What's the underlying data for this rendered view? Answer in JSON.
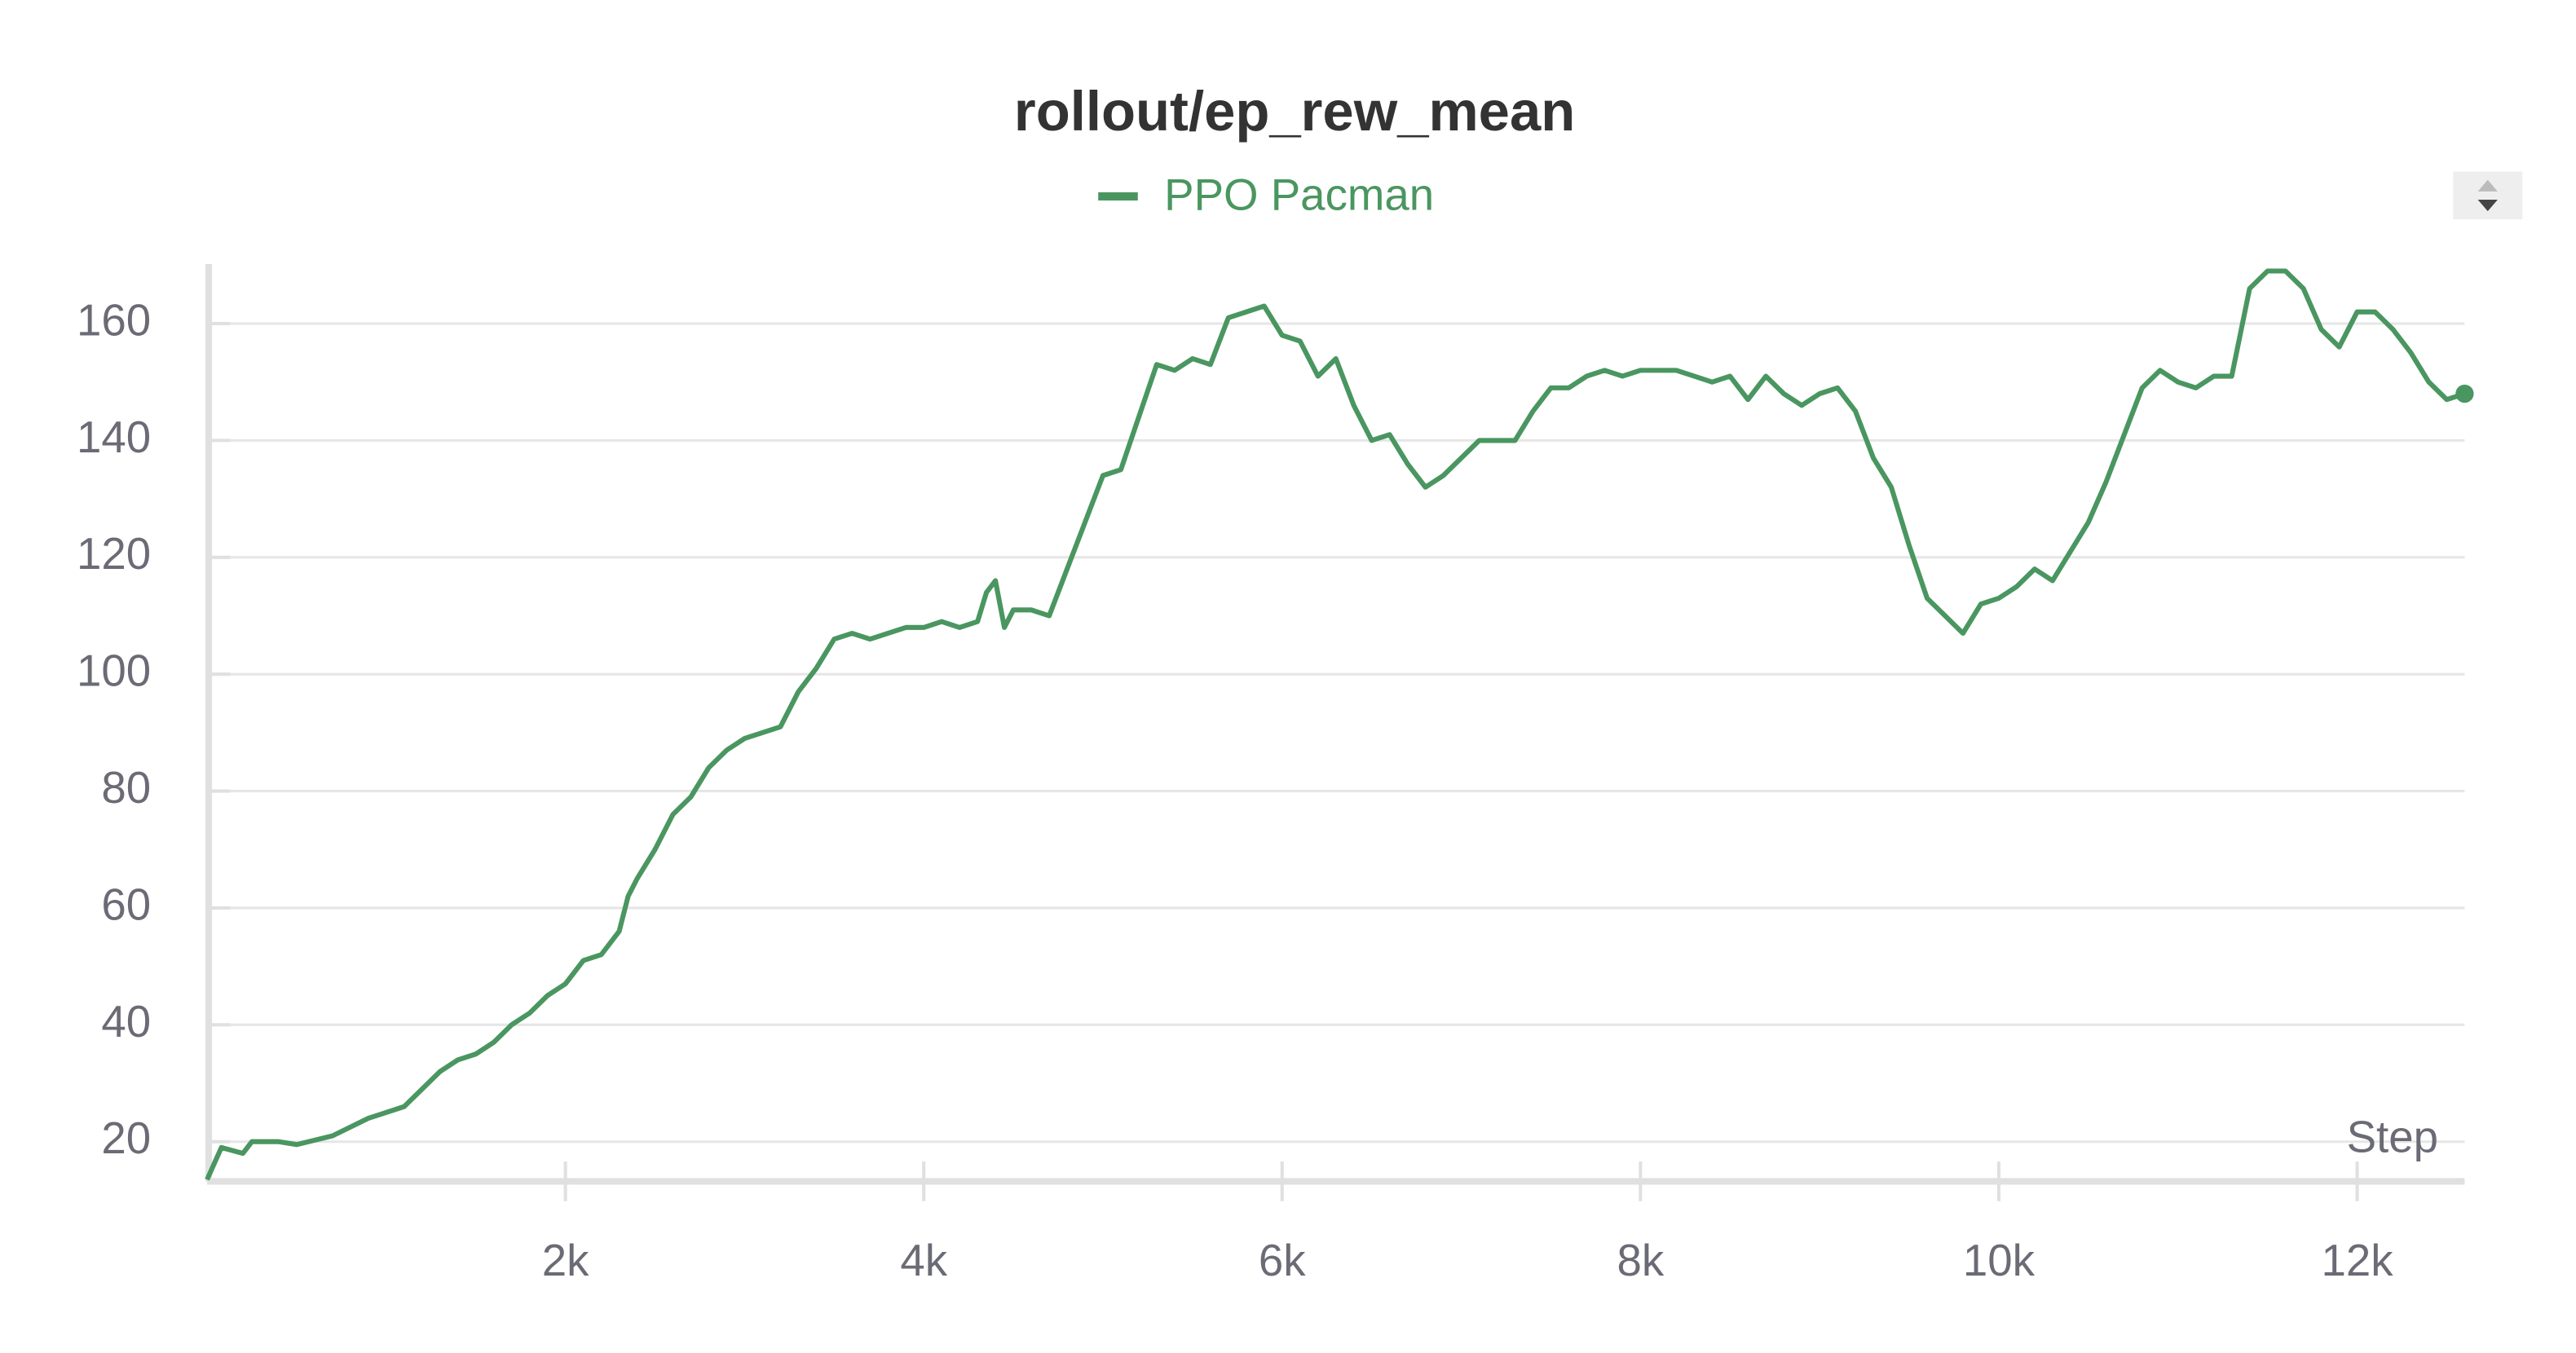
{
  "chart_data": {
    "type": "line",
    "title": "rollout/ep_rew_mean",
    "xlabel": "Step",
    "x": [
      0,
      80,
      200,
      250,
      400,
      500,
      700,
      900,
      1000,
      1100,
      1200,
      1300,
      1400,
      1500,
      1600,
      1700,
      1800,
      1900,
      2000,
      2100,
      2200,
      2300,
      2350,
      2400,
      2500,
      2600,
      2700,
      2800,
      2900,
      3000,
      3100,
      3200,
      3300,
      3400,
      3500,
      3600,
      3700,
      3800,
      3900,
      4000,
      4100,
      4200,
      4300,
      4350,
      4400,
      4450,
      4500,
      4600,
      4700,
      4800,
      4900,
      5000,
      5100,
      5200,
      5300,
      5400,
      5500,
      5600,
      5700,
      5800,
      5900,
      6000,
      6100,
      6200,
      6300,
      6400,
      6500,
      6600,
      6700,
      6800,
      6900,
      7000,
      7100,
      7200,
      7300,
      7400,
      7500,
      7600,
      7700,
      7800,
      7900,
      8000,
      8100,
      8200,
      8300,
      8400,
      8500,
      8600,
      8700,
      8800,
      8900,
      9000,
      9100,
      9200,
      9300,
      9400,
      9500,
      9600,
      9700,
      9800,
      9900,
      10000,
      10100,
      10200,
      10300,
      10400,
      10500,
      10600,
      10700,
      10800,
      10900,
      11000,
      11100,
      11200,
      11300,
      11400,
      11500,
      11600,
      11700,
      11800,
      11900,
      12000,
      12100,
      12200,
      12300,
      12400,
      12500,
      12600
    ],
    "series": [
      {
        "name": "PPO Pacman",
        "color": "#4a9660",
        "values": [
          13.5,
          19,
          18,
          20,
          20,
          19.5,
          21,
          24,
          25,
          26,
          29,
          32,
          34,
          35,
          37,
          40,
          42,
          45,
          47,
          51,
          52,
          56,
          62,
          65,
          70,
          76,
          79,
          84,
          87,
          89,
          90,
          91,
          97,
          101,
          106,
          107,
          106,
          107,
          108,
          108,
          109,
          108,
          109,
          114,
          116,
          108,
          111,
          111,
          110,
          118,
          126,
          134,
          135,
          144,
          153,
          152,
          154,
          153,
          161,
          162,
          163,
          158,
          157,
          151,
          154,
          146,
          140,
          141,
          136,
          132,
          134,
          137,
          140,
          140,
          140,
          145,
          149,
          149,
          151,
          152,
          151,
          152,
          152,
          152,
          151,
          150,
          151,
          147,
          151,
          148,
          146,
          148,
          149,
          145,
          137,
          132,
          122,
          113,
          110,
          107,
          112,
          113,
          115,
          118,
          116,
          121,
          126,
          133,
          141,
          149,
          152,
          150,
          149,
          151,
          151,
          166,
          169,
          169,
          166,
          159,
          156,
          162,
          162,
          159,
          155,
          150,
          147,
          148
        ]
      }
    ],
    "xlim": [
      0,
      12600
    ],
    "ylim": [
      13.2,
      170.2
    ],
    "xticks": [
      {
        "value": 2000,
        "label": "2k"
      },
      {
        "value": 4000,
        "label": "4k"
      },
      {
        "value": 6000,
        "label": "6k"
      },
      {
        "value": 8000,
        "label": "8k"
      },
      {
        "value": 10000,
        "label": "10k"
      },
      {
        "value": 12000,
        "label": "12k"
      }
    ],
    "yticks": [
      20,
      40,
      60,
      80,
      100,
      120,
      140,
      160
    ],
    "grid": true
  }
}
